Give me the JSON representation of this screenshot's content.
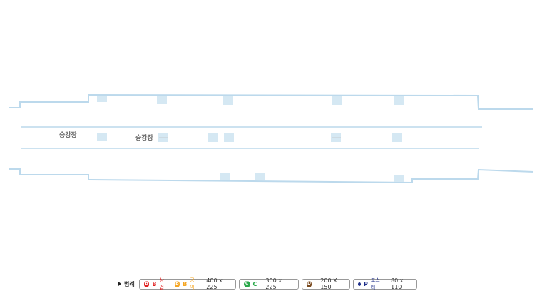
{
  "platforms": {
    "left_label": "승강장",
    "right_label": "승강장"
  },
  "legend": {
    "title": "범례",
    "b_commercial": {
      "badge": "B",
      "letter": "B",
      "type": "상업",
      "color": "#e02020"
    },
    "b_public": {
      "badge": "B",
      "letter": "B",
      "type": "공익",
      "color": "#f5a623"
    },
    "b_size": "400 x 225",
    "c": {
      "badge": "C",
      "letter": "C",
      "size": "300 x 225",
      "color": "#2aa84a"
    },
    "d": {
      "badge": "D",
      "size": "200 X 150",
      "color": "#7a4a1e"
    },
    "p": {
      "letter": "P",
      "type": "포스터",
      "size": "80 x 110",
      "color": "#1f2f8a"
    }
  },
  "colors": {
    "outline": "#bcd9ec",
    "ad_box": "#d5e8f3"
  }
}
